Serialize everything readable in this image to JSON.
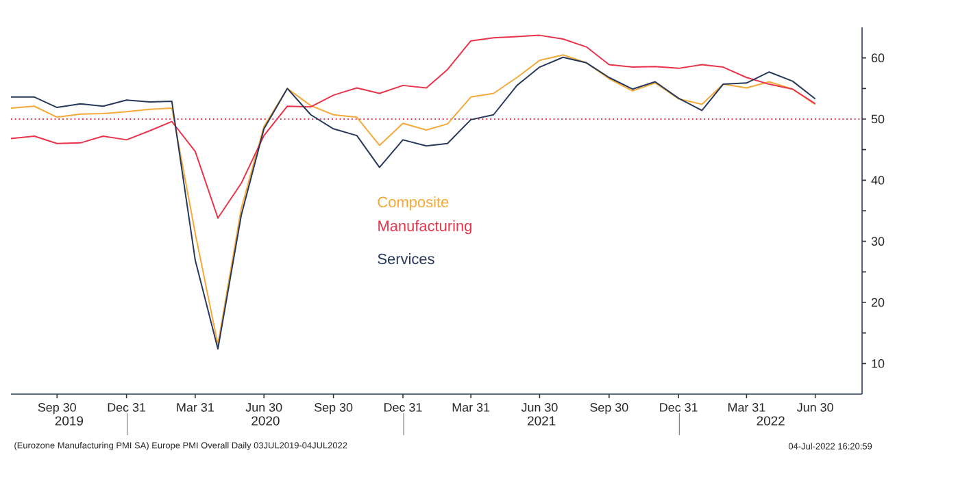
{
  "chart_data": {
    "type": "line",
    "x": [
      "2019-07-31",
      "2019-08-31",
      "2019-09-30",
      "2019-10-31",
      "2019-11-30",
      "2019-12-31",
      "2020-01-31",
      "2020-02-29",
      "2020-03-31",
      "2020-04-30",
      "2020-05-31",
      "2020-06-30",
      "2020-07-31",
      "2020-08-31",
      "2020-09-30",
      "2020-10-31",
      "2020-11-30",
      "2020-12-31",
      "2021-01-31",
      "2021-02-28",
      "2021-03-31",
      "2021-04-30",
      "2021-05-31",
      "2021-06-30",
      "2021-07-31",
      "2021-08-31",
      "2021-09-30",
      "2021-10-31",
      "2021-11-30",
      "2021-12-31",
      "2022-01-31",
      "2022-02-28",
      "2022-03-31",
      "2022-04-30",
      "2022-05-31",
      "2022-06-30"
    ],
    "series": [
      {
        "name": "Composite",
        "color": "#f5a938",
        "values": [
          51.8,
          52.1,
          50.3,
          50.8,
          50.9,
          51.2,
          51.6,
          51.8,
          31.3,
          13.1,
          35.4,
          48.8,
          55.0,
          52.2,
          50.7,
          50.3,
          45.7,
          49.3,
          48.2,
          49.2,
          53.6,
          54.2,
          56.8,
          59.6,
          60.5,
          59.2,
          56.6,
          54.6,
          55.9,
          53.3,
          52.4,
          55.7,
          55.1,
          56.1,
          54.9,
          52.4
        ]
      },
      {
        "name": "Manufacturing",
        "color": "#e8334a",
        "values": [
          46.8,
          47.2,
          46.0,
          46.1,
          47.2,
          46.6,
          48.1,
          49.6,
          44.7,
          33.8,
          39.5,
          47.3,
          52.1,
          52.0,
          53.9,
          55.1,
          54.2,
          55.5,
          55.1,
          58.1,
          62.8,
          63.3,
          63.5,
          63.7,
          63.1,
          61.8,
          58.9,
          58.5,
          58.6,
          58.3,
          58.9,
          58.5,
          56.8,
          55.7,
          54.9,
          52.5
        ]
      },
      {
        "name": "Services",
        "color": "#26385c",
        "values": [
          53.6,
          53.6,
          51.9,
          52.5,
          52.1,
          53.1,
          52.8,
          52.9,
          26.9,
          12.4,
          34.3,
          48.4,
          55.0,
          50.7,
          48.4,
          47.3,
          42.1,
          46.6,
          45.6,
          46.0,
          49.9,
          50.7,
          55.5,
          58.5,
          60.1,
          59.2,
          56.8,
          54.9,
          56.1,
          53.4,
          51.4,
          55.7,
          55.9,
          57.7,
          56.2,
          53.3
        ]
      }
    ],
    "xlim": [
      "2019-07-31",
      "2022-08-31"
    ],
    "xticks": [
      {
        "value": "2019-09-30",
        "label": "Sep 30"
      },
      {
        "value": "2019-12-31",
        "label": "Dec 31"
      },
      {
        "value": "2020-03-31",
        "label": "Mar 31"
      },
      {
        "value": "2020-06-30",
        "label": "Jun 30"
      },
      {
        "value": "2020-09-30",
        "label": "Sep 30"
      },
      {
        "value": "2020-12-31",
        "label": "Dec 31"
      },
      {
        "value": "2021-03-31",
        "label": "Mar 31"
      },
      {
        "value": "2021-06-30",
        "label": "Jun 30"
      },
      {
        "value": "2021-09-30",
        "label": "Sep 30"
      },
      {
        "value": "2021-12-31",
        "label": "Dec 31"
      },
      {
        "value": "2022-03-31",
        "label": "Mar 31"
      },
      {
        "value": "2022-06-30",
        "label": "Jun 30"
      }
    ],
    "ylim": [
      5,
      65
    ],
    "yticks": [
      10,
      {
        "value": 15,
        "label": null
      },
      20,
      {
        "value": 25,
        "label": null
      },
      30,
      {
        "value": 35,
        "label": null
      },
      40,
      {
        "value": 45,
        "label": null
      },
      50,
      {
        "value": 55,
        "label": null
      },
      60
    ],
    "ref_lines": [
      {
        "axis": "y",
        "value": 50,
        "color": "#e8334a",
        "line_style": "dotted"
      }
    ],
    "legend": "center",
    "grid": false,
    "marker": "none",
    "line_style": "solid",
    "annotations": [
      "2019",
      "2020",
      "2021",
      "2022",
      "(Eurozone Manufacturing PMI SA) Europe PMI Overall  Daily 03JUL2019-04JUL2022",
      "04-Jul-2022 16:20:59"
    ]
  }
}
